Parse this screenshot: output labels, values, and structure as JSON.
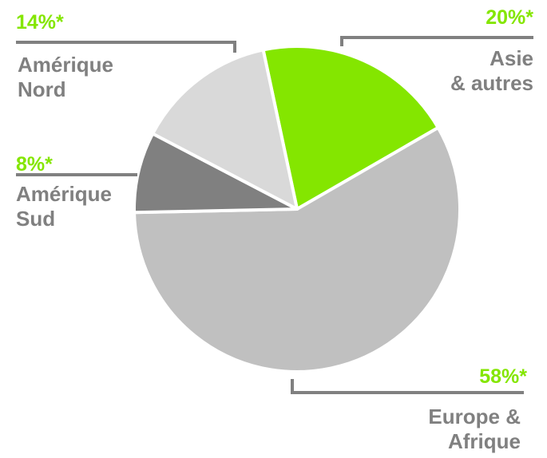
{
  "chart_data": {
    "type": "pie",
    "categories": [
      "Asie\n& autres",
      "Europe &\nAfrique",
      "Amérique\nSud",
      "Amérique\nNord"
    ],
    "values": [
      20,
      58,
      8,
      14
    ],
    "value_labels": [
      "20%*",
      "58%*",
      "8%*",
      "14%*"
    ],
    "colors": [
      "#84e600",
      "#c0c0c0",
      "#808080",
      "#d9d9d9"
    ]
  }
}
